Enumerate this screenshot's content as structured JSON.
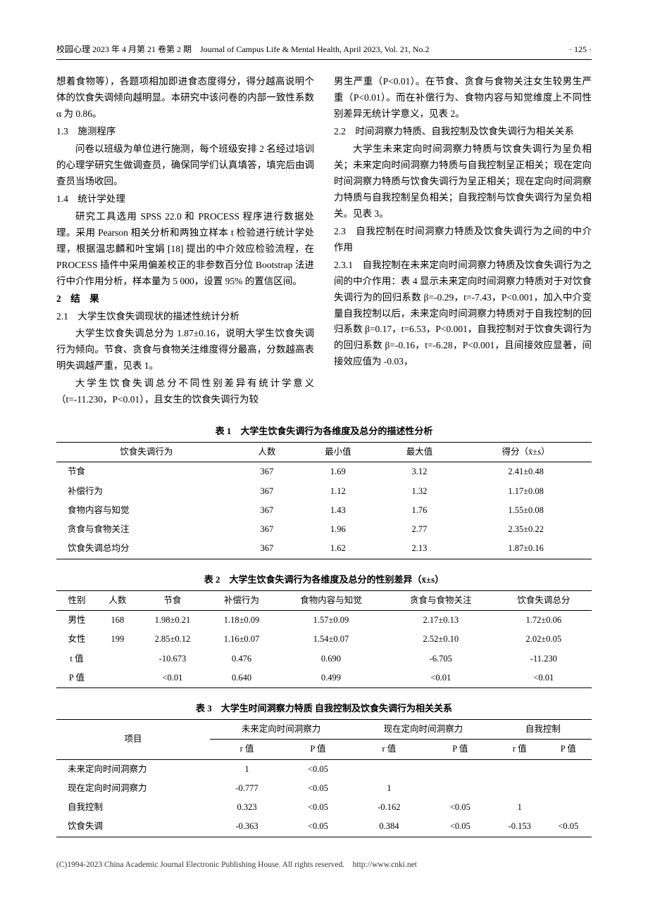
{
  "header": {
    "left": "校园心理 2023 年 4 月第 21 卷第 2 期　Journal of Campus Life & Mental Health, April 2023, Vol. 21, No.2",
    "right": "· 125 ·"
  },
  "left_col": {
    "p1": "想着食物等），各题项相加即进食态度得分，得分越高说明个体的饮食失调倾向越明显。本研究中该问卷的内部一致性系数 α 为 0.86。",
    "s13": "1.3　施测程序",
    "p2": "问卷以班级为单位进行施测，每个班级安排 2 名经过培训的心理学研究生做调查员，确保同学们认真填答，填完后由调查员当场收回。",
    "s14": "1.4　统计学处理",
    "p3": "研究工具选用 SPSS 22.0 和 PROCESS 程序进行数据处理。采用 Pearson 相关分析和两独立样本 t 检验进行统计学处理，根据温忠麟和叶宝娟 [18] 提出的中介效应检验流程，在 PROCESS 插件中采用偏差校正的非参数百分位 Bootstrap 法进行中介作用分析，样本量为 5 000，设置 95% 的置信区间。",
    "s2": "2　结　果",
    "s21": "2.1　大学生饮食失调现状的描述性统计分析",
    "p4": "大学生饮食失调总分为 1.87±0.16，说明大学生饮食失调行为倾向。节食、贪食与食物关注维度得分最高，分数越高表明失调越严重，见表 1。",
    "p5": "大学生饮食失调总分不同性别差异有统计学意义（t=-11.230，P<0.01），且女生的饮食失调行为较"
  },
  "right_col": {
    "p1": "男生严重（P<0.01）。在节食、贪食与食物关注女生较男生严重（P<0.01）。而在补偿行为、食物内容与知觉维度上不同性别差异无统计学意义，见表 2。",
    "s22": "2.2　时间洞察力特质、自我控制及饮食失调行为相关关系",
    "p2": "大学生未来定向时间洞察力特质与饮食失调行为呈负相关；未来定向时间洞察力特质与自我控制呈正相关；现在定向时间洞察力特质与饮食失调行为呈正相关；现在定向时间洞察力特质与自我控制呈负相关；自我控制与饮食失调行为呈负相关。见表 3。",
    "s23": "2.3　自我控制在时间洞察力特质及饮食失调行为之间的中介作用",
    "s231": "2.3.1　自我控制在未来定向时间洞察力特质及饮食失调行为之间的中介作用：表 4 显示未来定向时间洞察力特质对于对饮食失调行为的回归系数 β=-0.29，t=-7.43，P<0.001，加入中介变量自我控制以后，未来定向时间洞察力特质对于自我控制的回归系数 β=0.17，t=6.53，P<0.001，自我控制对于饮食失调行为的回归系数 β=-0.16，t=-6.28，P<0.001，且间接效应显著，间接效应值为 -0.03，"
  },
  "table1": {
    "caption": "表 1　大学生饮食失调行为各维度及总分的描述性分析",
    "headers": [
      "饮食失调行为",
      "人数",
      "最小值",
      "最大值",
      "得分（x̄±s）"
    ],
    "rows": [
      [
        "节食",
        "367",
        "1.69",
        "3.12",
        "2.41±0.48"
      ],
      [
        "补偿行为",
        "367",
        "1.12",
        "1.32",
        "1.17±0.08"
      ],
      [
        "食物内容与知觉",
        "367",
        "1.43",
        "1.76",
        "1.55±0.08"
      ],
      [
        "贪食与食物关注",
        "367",
        "1.96",
        "2.77",
        "2.35±0.22"
      ],
      [
        "饮食失调总均分",
        "367",
        "1.62",
        "2.13",
        "1.87±0.16"
      ]
    ]
  },
  "table2": {
    "caption": "表 2　大学生饮食失调行为各维度及总分的性别差异（x̄±s）",
    "headers": [
      "性别",
      "人数",
      "节食",
      "补偿行为",
      "食物内容与知觉",
      "贪食与食物关注",
      "饮食失调总分"
    ],
    "rows": [
      [
        "男性",
        "168",
        "1.98±0.21",
        "1.18±0.09",
        "1.57±0.09",
        "2.17±0.13",
        "1.72±0.06"
      ],
      [
        "女性",
        "199",
        "2.85±0.12",
        "1.16±0.07",
        "1.54±0.07",
        "2.52±0.10",
        "2.02±0.05"
      ],
      [
        "t 值",
        "",
        "-10.673",
        "0.476",
        "0.690",
        "-6.705",
        "-11.230"
      ],
      [
        "P 值",
        "",
        "<0.01",
        "0.640",
        "0.499",
        "<0.01",
        "<0.01"
      ]
    ]
  },
  "table3": {
    "caption": "表 3　大学生时间洞察力特质 自我控制及饮食失调行为相关关系",
    "group_headers": [
      "项目",
      "未来定向时间洞察力",
      "现在定向时间洞察力",
      "自我控制"
    ],
    "sub_headers": [
      "r 值",
      "P 值",
      "r 值",
      "P 值",
      "r 值",
      "P 值"
    ],
    "rows": [
      [
        "未来定向时间洞察力",
        "1",
        "<0.05",
        "",
        "",
        "",
        ""
      ],
      [
        "现在定向时间洞察力",
        "-0.777",
        "<0.05",
        "1",
        "",
        "",
        ""
      ],
      [
        "自我控制",
        "0.323",
        "<0.05",
        "-0.162",
        "<0.05",
        "1",
        ""
      ],
      [
        "饮食失调",
        "-0.363",
        "<0.05",
        "0.384",
        "<0.05",
        "-0.153",
        "<0.05"
      ]
    ]
  },
  "footer": "(C)1994-2023 China Academic Journal Electronic Publishing House. All rights reserved.　http://www.cnki.net"
}
